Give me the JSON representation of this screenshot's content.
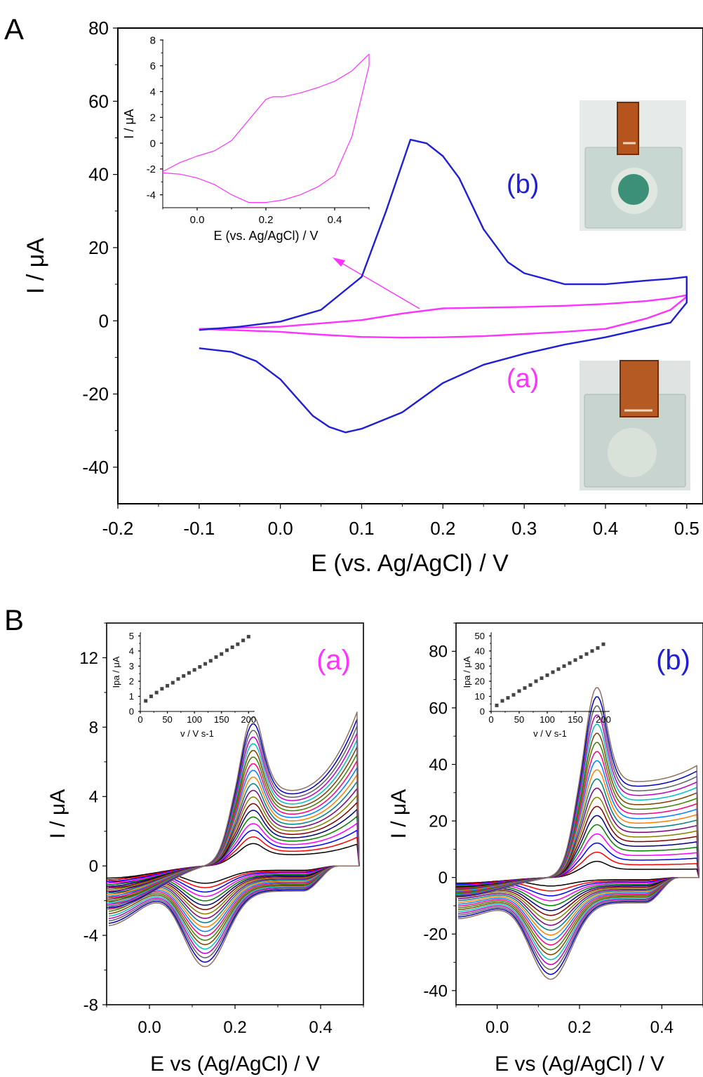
{
  "figure": {
    "panel_A_label": "A",
    "panel_B_label": "B",
    "colors": {
      "blue": "#1f1fd6",
      "magenta": "#ff33ff",
      "axis": "#000000"
    }
  },
  "chart_data": [
    {
      "id": "A_main",
      "type": "line",
      "xlabel": "E (vs. Ag/AgCl) / V",
      "ylabel": "I / μA",
      "xlim": [
        -0.2,
        0.52
      ],
      "ylim": [
        -50,
        80
      ],
      "xticks": [
        -0.2,
        -0.1,
        0.0,
        0.1,
        0.2,
        0.3,
        0.4,
        0.5
      ],
      "xtick_labels": [
        "-0.2",
        "-0.1",
        "0.0",
        "0.1",
        "0.2",
        "0.3",
        "0.4",
        "0.5"
      ],
      "yticks": [
        -40,
        -20,
        0,
        20,
        40,
        60,
        80
      ],
      "ytick_labels": [
        "-40",
        "-20",
        "0",
        "20",
        "40",
        "60",
        "80"
      ],
      "annotations": [
        "(a)",
        "(b)"
      ],
      "series": [
        {
          "label": "(a)",
          "color": "#ff33ff",
          "x": [
            -0.1,
            0.0,
            0.1,
            0.15,
            0.2,
            0.25,
            0.3,
            0.35,
            0.4,
            0.45,
            0.48,
            0.5,
            0.5,
            0.48,
            0.45,
            0.4,
            0.35,
            0.3,
            0.25,
            0.2,
            0.15,
            0.1,
            0.05,
            0.0,
            -0.05,
            -0.1
          ],
          "y": [
            -2.2,
            -1.6,
            0.2,
            2.0,
            3.4,
            3.6,
            3.8,
            4.1,
            4.6,
            5.4,
            6.2,
            7.0,
            6.6,
            3.0,
            0.6,
            -2.2,
            -3.0,
            -3.6,
            -4.2,
            -4.5,
            -4.6,
            -4.4,
            -3.8,
            -3.0,
            -2.6,
            -2.2
          ]
        },
        {
          "label": "(b)",
          "color": "#1f1fd6",
          "x": [
            -0.1,
            -0.05,
            0.0,
            0.05,
            0.1,
            0.13,
            0.16,
            0.18,
            0.2,
            0.22,
            0.25,
            0.28,
            0.3,
            0.35,
            0.4,
            0.45,
            0.48,
            0.5,
            0.5,
            0.48,
            0.45,
            0.4,
            0.35,
            0.3,
            0.25,
            0.2,
            0.15,
            0.1,
            0.08,
            0.06,
            0.04,
            0.02,
            0.0,
            -0.03,
            -0.06,
            -0.1
          ],
          "y": [
            -2.5,
            -1.6,
            -0.2,
            3.0,
            12.0,
            30.0,
            49.5,
            48.5,
            45.0,
            39.0,
            25.0,
            16.0,
            13.0,
            10.0,
            10.0,
            11.0,
            11.5,
            12.0,
            5.0,
            -0.5,
            -2.0,
            -4.5,
            -6.5,
            -9.0,
            -12.0,
            -17.0,
            -25.0,
            -29.5,
            -30.5,
            -29.0,
            -26.0,
            -21.0,
            -16.0,
            -11.0,
            -8.5,
            -7.5
          ]
        }
      ]
    },
    {
      "id": "A_inset",
      "type": "line",
      "xlabel": "E (vs. Ag/AgCl) / V",
      "ylabel": "I / μA",
      "xlim": [
        -0.1,
        0.5
      ],
      "ylim": [
        -5,
        8
      ],
      "xticks": [
        0.0,
        0.2,
        0.4
      ],
      "xtick_labels": [
        "0.0",
        "0.2",
        "0.4"
      ],
      "yticks": [
        -4,
        -2,
        0,
        2,
        4,
        6,
        8
      ],
      "ytick_labels": [
        "-4",
        "-2",
        "0",
        "2",
        "4",
        "6",
        "8"
      ],
      "series": [
        {
          "label": "",
          "color": "#ff33ff",
          "x": [
            -0.1,
            -0.05,
            0.0,
            0.05,
            0.1,
            0.15,
            0.2,
            0.22,
            0.25,
            0.3,
            0.35,
            0.4,
            0.45,
            0.5,
            0.5,
            0.45,
            0.4,
            0.35,
            0.3,
            0.25,
            0.2,
            0.15,
            0.1,
            0.05,
            0.0,
            -0.05,
            -0.1
          ],
          "y": [
            -2.2,
            -1.5,
            -1.0,
            -0.6,
            0.2,
            1.8,
            3.4,
            3.6,
            3.6,
            3.9,
            4.3,
            4.8,
            5.6,
            6.9,
            6.0,
            0.5,
            -2.5,
            -3.4,
            -4.0,
            -4.4,
            -4.6,
            -4.6,
            -4.0,
            -3.2,
            -2.7,
            -2.4,
            -2.3
          ]
        }
      ]
    },
    {
      "id": "B_a",
      "type": "line",
      "title": "(a)",
      "xlabel": "E vs (Ag/AgCl) / V",
      "ylabel": "I / μA",
      "xlim": [
        -0.1,
        0.5
      ],
      "ylim": [
        -8,
        14
      ],
      "xticks": [
        0.0,
        0.2,
        0.4
      ],
      "xtick_labels": [
        "0.0",
        "0.2",
        "0.4"
      ],
      "yticks": [
        -8,
        -4,
        0,
        4,
        8,
        12
      ],
      "ytick_labels": [
        "-8",
        "-4",
        "0",
        "4",
        "8",
        "12"
      ],
      "family": {
        "count": 20,
        "palette": [
          "#000000",
          "#ff0000",
          "#0000ff",
          "#ff00ff",
          "#008000",
          "#000080",
          "#800000",
          "#808000",
          "#800080",
          "#008080",
          "#ff8000",
          "#0080ff",
          "#ff0080",
          "#408000",
          "#804000",
          "#00c0c0",
          "#c000c0",
          "#606060",
          "#0000c0",
          "#907060"
        ],
        "peak_anodic_first": 0.9,
        "peak_anodic_last": 6.0,
        "peak_cathodic_first": -1.0,
        "peak_cathodic_last": -5.8,
        "end_anodic_first": 1.3,
        "end_anodic_last": 9.2,
        "start_current_first": -0.7,
        "start_current_last": -2.5
      }
    },
    {
      "id": "B_a_inset",
      "type": "scatter",
      "xlabel": "v / V s-1",
      "ylabel": "Ipa / μA",
      "xlim": [
        0,
        210
      ],
      "ylim": [
        0,
        5.2
      ],
      "xticks": [
        0,
        50,
        100,
        150,
        200
      ],
      "xtick_labels": [
        "0",
        "50",
        "100",
        "150",
        "200"
      ],
      "yticks": [
        0,
        1,
        2,
        3,
        4,
        5
      ],
      "ytick_labels": [
        "0",
        "1",
        "2",
        "3",
        "4",
        "5"
      ],
      "x": [
        10,
        20,
        30,
        40,
        50,
        60,
        70,
        80,
        90,
        100,
        110,
        120,
        130,
        140,
        150,
        160,
        170,
        180,
        190,
        200
      ],
      "y": [
        0.7,
        1.0,
        1.25,
        1.5,
        1.7,
        1.9,
        2.15,
        2.35,
        2.55,
        2.75,
        2.95,
        3.15,
        3.35,
        3.6,
        3.8,
        4.05,
        4.25,
        4.45,
        4.7,
        4.95
      ]
    },
    {
      "id": "B_b",
      "type": "line",
      "title": "(b)",
      "xlabel": "E vs (Ag/AgCl) / V",
      "ylabel": "I / μA",
      "xlim": [
        -0.1,
        0.5
      ],
      "ylim": [
        -45,
        90
      ],
      "xticks": [
        0.0,
        0.2,
        0.4
      ],
      "xtick_labels": [
        "0.0",
        "0.2",
        "0.4"
      ],
      "yticks": [
        -40,
        -20,
        0,
        20,
        40,
        60,
        80
      ],
      "ytick_labels": [
        "-40",
        "-20",
        "0",
        "20",
        "40",
        "60",
        "80"
      ],
      "family": {
        "count": 20,
        "palette": [
          "#000000",
          "#ff0000",
          "#0000ff",
          "#ff00ff",
          "#008000",
          "#000080",
          "#800000",
          "#808000",
          "#800080",
          "#008080",
          "#ff8000",
          "#0080ff",
          "#ff0080",
          "#408000",
          "#804000",
          "#00c0c0",
          "#c000c0",
          "#606060",
          "#0000c0",
          "#907060"
        ],
        "peak_anodic_first": 4.0,
        "peak_anodic_last": 47.0,
        "peak_cathodic_first": -3.0,
        "peak_cathodic_last": -36.0,
        "end_anodic_first": 3.0,
        "end_anodic_last": 40.0,
        "start_current_first": -2.0,
        "start_current_last": -7.0
      }
    },
    {
      "id": "B_b_inset",
      "type": "scatter",
      "xlabel": "v / V s-1",
      "ylabel": "Ipa / μA",
      "xlim": [
        0,
        210
      ],
      "ylim": [
        0,
        52
      ],
      "xticks": [
        0,
        50,
        100,
        150,
        200
      ],
      "xtick_labels": [
        "0",
        "50",
        "100",
        "150",
        "200"
      ],
      "yticks": [
        0,
        10,
        20,
        30,
        40,
        50
      ],
      "ytick_labels": [
        "0",
        "10",
        "20",
        "30",
        "40",
        "50"
      ],
      "x": [
        10,
        20,
        30,
        40,
        50,
        60,
        70,
        80,
        90,
        100,
        110,
        120,
        130,
        140,
        150,
        160,
        170,
        180,
        190,
        200
      ],
      "y": [
        4,
        7,
        9,
        11,
        13.5,
        15.5,
        17.5,
        20,
        22,
        24,
        26,
        28,
        30,
        32,
        34,
        36,
        38,
        40,
        42,
        44.5
      ]
    }
  ]
}
